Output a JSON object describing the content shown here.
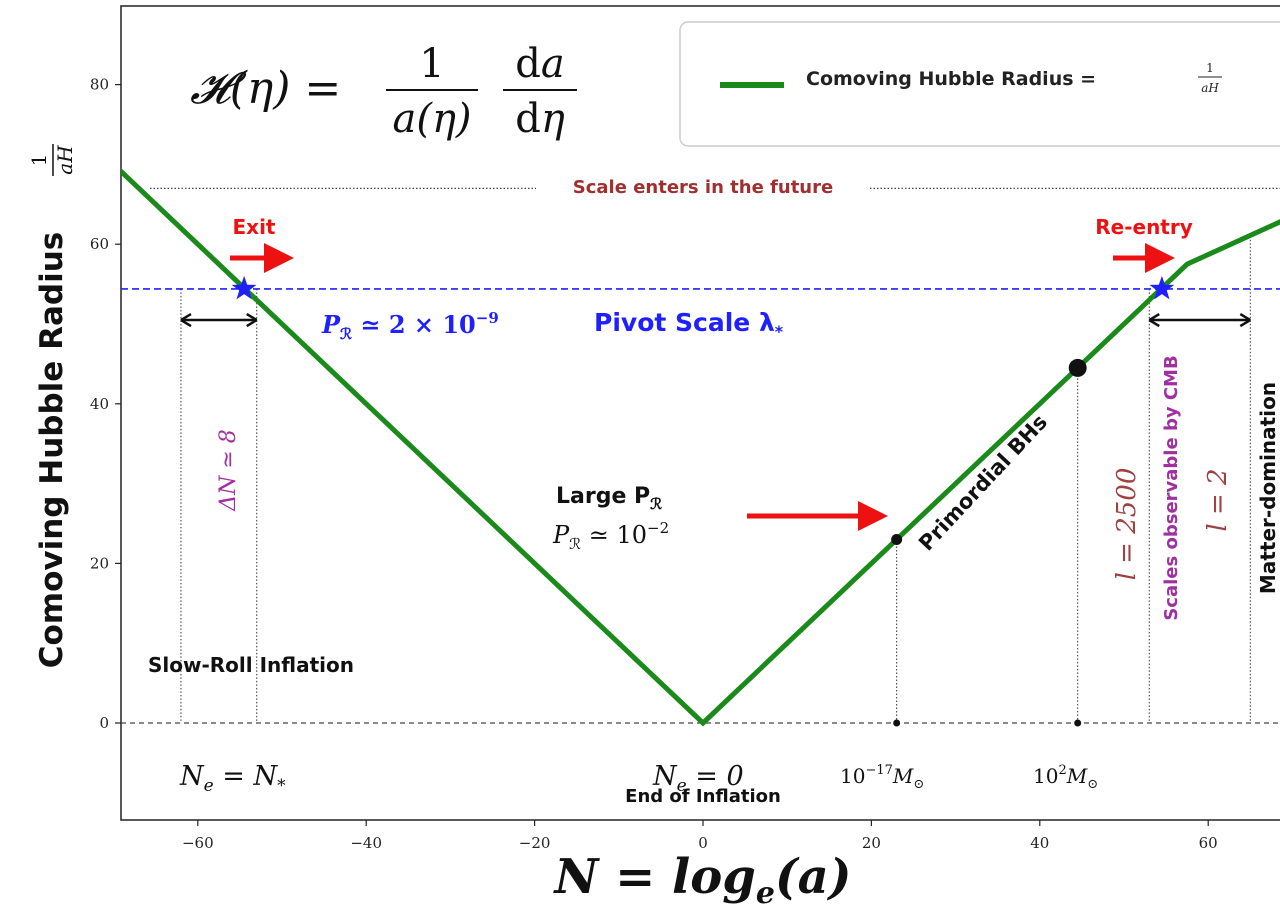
{
  "chart_data": {
    "type": "line",
    "title": "",
    "equation": "𝓗(η) = (1 / a(η)) · da / dη",
    "ylabel": "Comoving Hubble Radius",
    "ylabel_fraction": {
      "num": "1",
      "den": "aH"
    },
    "xlabel": "N = log",
    "xlabel_sub": "e",
    "xlabel_tail": "(a)",
    "xlim": [
      -70,
      70
    ],
    "ylim": [
      -12,
      90
    ],
    "xticks": [
      -60,
      -40,
      -20,
      0,
      20,
      40,
      60
    ],
    "yticks": [
      0,
      20,
      40,
      60,
      80
    ],
    "legend": {
      "position": "top-right",
      "label": "Comoving Hubble Radius =",
      "frac_num": "1",
      "frac_den": "aH"
    },
    "series": [
      {
        "name": "Comoving Hubble Radius",
        "color": "#1a8a1a",
        "x": [
          -70,
          0,
          57.5,
          70
        ],
        "y": [
          70,
          0,
          57.5,
          63.5
        ]
      }
    ],
    "pivot_level": 54.4,
    "future_level": 67,
    "stars": [
      {
        "x": -54.5,
        "y": 54.4
      },
      {
        "x": 54.5,
        "y": 54.4
      }
    ],
    "dots": [
      {
        "x": 23,
        "y": 23,
        "size": "small"
      },
      {
        "x": 44.5,
        "y": 44.5,
        "size": "large"
      }
    ],
    "axis_dots": [
      23,
      44.5
    ],
    "vlines": [
      {
        "x": -62,
        "top": 54.4
      },
      {
        "x": -53,
        "top": 54.4
      },
      {
        "x": 23,
        "top": 23
      },
      {
        "x": 44.5,
        "top": 44.5
      },
      {
        "x": 53,
        "top": 54.4
      },
      {
        "x": 65,
        "top": 61
      }
    ],
    "colors": {
      "pivot": "#2020ff",
      "arrow_red": "#ee1111",
      "future": "#a03030",
      "purple": "#a030a0",
      "ell": "#a04040"
    },
    "annotations": {
      "future": "Scale enters in the future",
      "exit": "Exit",
      "reentry": "Re-entry",
      "pr_pivot": "P",
      "pr_pivot_sub": "ℛ",
      "pr_pivot_tail": " ≃ 2 × 10",
      "pr_pivot_exp": "−9",
      "pivot": "Pivot Scale λ",
      "pivot_sub": "*",
      "delta_n": "ΔN ≃ 8",
      "large_pr": "Large P",
      "large_pr_sub": "ℛ",
      "pr_large": "P",
      "pr_large_sub": "ℛ",
      "pr_large_tail": " ≃ 10",
      "pr_large_exp": "−2",
      "primordial": "Primordial BHs",
      "cmb": "Scales observable by CMB",
      "l2500": "l = 2500",
      "l2": "l = 2",
      "matter": "Matter-domination",
      "slow_roll": "Slow-Roll Inflation",
      "ne_star": "N",
      "ne_star_sub": "e",
      "ne_star_tail": " = N",
      "ne_star_sub2": "*",
      "ne_zero": "N",
      "ne_zero_sub": "e",
      "ne_zero_tail": " = 0",
      "end_inflation": "End of Inflation",
      "mass_small": "10",
      "mass_small_exp": "−17",
      "mass_small_tail": "M",
      "mass_small_sub": "⊙",
      "mass_large": "10",
      "mass_large_exp": "2",
      "mass_large_tail": "M",
      "mass_large_sub": "⊙"
    }
  }
}
